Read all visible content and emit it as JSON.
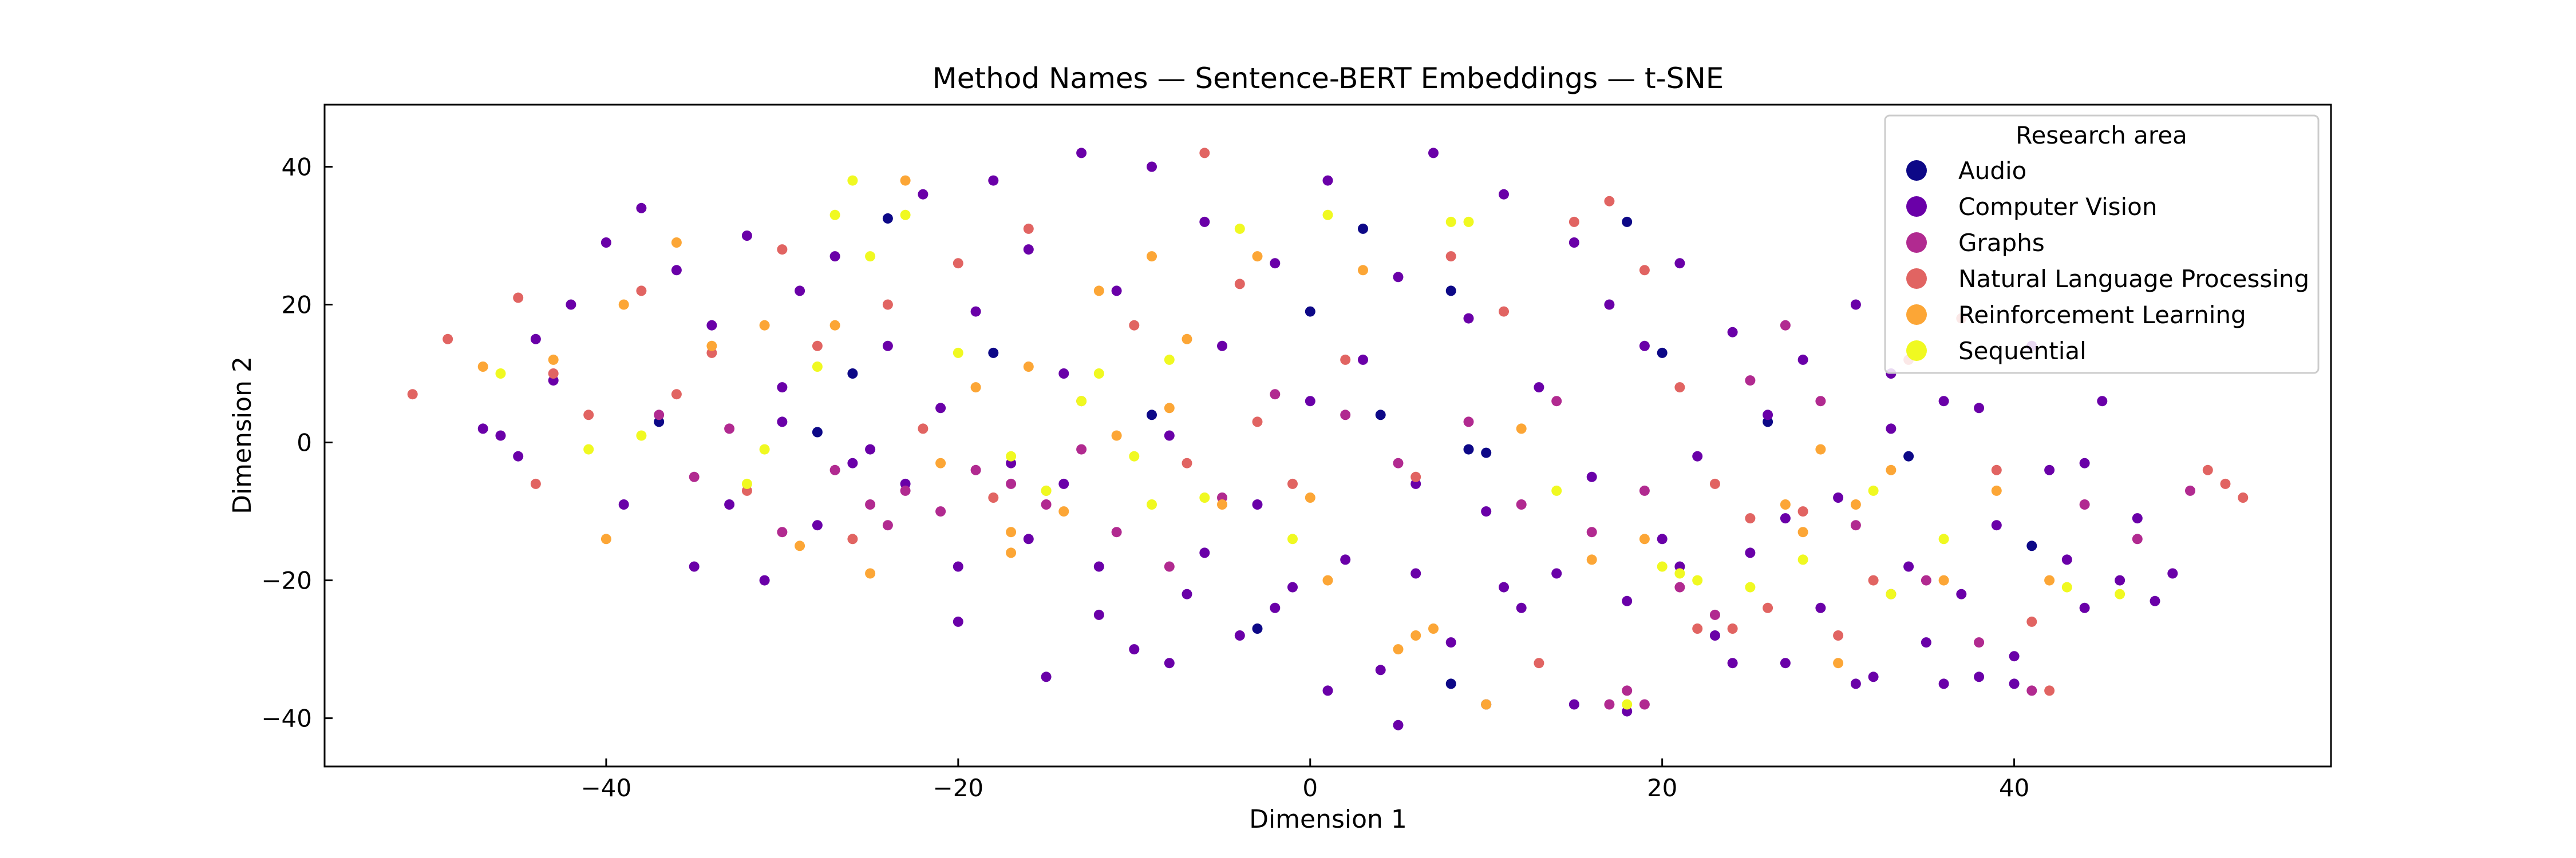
{
  "chart_data": {
    "type": "scatter",
    "title": "Method Names — Sentence-BERT Embeddings — t-SNE",
    "xlabel": "Dimension 1",
    "ylabel": "Dimension 2",
    "xlim": [
      -56,
      58
    ],
    "ylim": [
      -47,
      49
    ],
    "xticks": [
      -40,
      -20,
      0,
      20,
      40
    ],
    "yticks": [
      -40,
      -20,
      0,
      20,
      40
    ],
    "xtick_labels": [
      "−40",
      "−20",
      "0",
      "20",
      "40"
    ],
    "ytick_labels": [
      "−40",
      "−20",
      "0",
      "20",
      "40"
    ],
    "grid": false,
    "legend_title": "Research area",
    "legend_position": "top-right",
    "series": [
      {
        "name": "Audio",
        "color": "#0d0887",
        "points": [
          [
            -28,
            1.5
          ],
          [
            -24,
            32.5
          ],
          [
            -18,
            13
          ],
          [
            -9,
            4
          ],
          [
            0,
            19
          ],
          [
            3,
            31
          ],
          [
            4,
            4
          ],
          [
            8,
            22
          ],
          [
            9,
            -1
          ],
          [
            10,
            -1.5
          ],
          [
            -3,
            -27
          ],
          [
            8,
            -35
          ],
          [
            10,
            -38
          ],
          [
            18,
            32
          ],
          [
            20,
            13
          ],
          [
            26,
            3
          ],
          [
            34,
            -2
          ],
          [
            41,
            -15
          ],
          [
            -37,
            3
          ],
          [
            -26,
            10
          ]
        ]
      },
      {
        "name": "Computer Vision",
        "color": "#6a00a8",
        "points": [
          [
            -47,
            2
          ],
          [
            -46,
            1
          ],
          [
            -45,
            -2
          ],
          [
            -43,
            9
          ],
          [
            -42,
            20
          ],
          [
            -40,
            29
          ],
          [
            -38,
            34
          ],
          [
            -36,
            25
          ],
          [
            -34,
            17
          ],
          [
            -33,
            -9
          ],
          [
            -31,
            -20
          ],
          [
            -30,
            8
          ],
          [
            -29,
            22
          ],
          [
            -28,
            -12
          ],
          [
            -27,
            27
          ],
          [
            -25,
            -1
          ],
          [
            -24,
            14
          ],
          [
            -22,
            36
          ],
          [
            -21,
            5
          ],
          [
            -20,
            -26
          ],
          [
            -19,
            19
          ],
          [
            -18,
            38
          ],
          [
            -17,
            -3
          ],
          [
            -16,
            28
          ],
          [
            -15,
            -34
          ],
          [
            -14,
            10
          ],
          [
            -13,
            42
          ],
          [
            -12,
            -18
          ],
          [
            -11,
            22
          ],
          [
            -10,
            -30
          ],
          [
            -9,
            40
          ],
          [
            -8,
            1
          ],
          [
            -7,
            -22
          ],
          [
            -6,
            32
          ],
          [
            -5,
            14
          ],
          [
            -4,
            -28
          ],
          [
            -3,
            -9
          ],
          [
            -2,
            26
          ],
          [
            -1,
            -21
          ],
          [
            0,
            6
          ],
          [
            1,
            38
          ],
          [
            2,
            -17
          ],
          [
            3,
            12
          ],
          [
            4,
            -33
          ],
          [
            5,
            24
          ],
          [
            6,
            -6
          ],
          [
            7,
            42
          ],
          [
            8,
            -29
          ],
          [
            9,
            18
          ],
          [
            10,
            -10
          ],
          [
            11,
            36
          ],
          [
            12,
            -24
          ],
          [
            13,
            8
          ],
          [
            14,
            -19
          ],
          [
            15,
            29
          ],
          [
            16,
            -5
          ],
          [
            17,
            20
          ],
          [
            18,
            -39
          ],
          [
            19,
            14
          ],
          [
            20,
            -14
          ],
          [
            21,
            26
          ],
          [
            22,
            -2
          ],
          [
            23,
            -28
          ],
          [
            24,
            16
          ],
          [
            25,
            -16
          ],
          [
            26,
            4
          ],
          [
            27,
            -32
          ],
          [
            28,
            12
          ],
          [
            29,
            -24
          ],
          [
            30,
            -8
          ],
          [
            31,
            20
          ],
          [
            32,
            -34
          ],
          [
            33,
            2
          ],
          [
            34,
            -18
          ],
          [
            35,
            -29
          ],
          [
            36,
            6
          ],
          [
            37,
            -22
          ],
          [
            38,
            -34
          ],
          [
            39,
            -12
          ],
          [
            40,
            -31
          ],
          [
            41,
            14
          ],
          [
            42,
            -4
          ],
          [
            43,
            -17
          ],
          [
            44,
            -24
          ],
          [
            45,
            6
          ],
          [
            46,
            -20
          ],
          [
            47,
            -11
          ],
          [
            48,
            -23
          ],
          [
            49,
            -19
          ],
          [
            -44,
            15
          ],
          [
            -39,
            -9
          ],
          [
            -35,
            -18
          ],
          [
            -32,
            30
          ],
          [
            -23,
            -6
          ],
          [
            -16,
            -14
          ],
          [
            -12,
            -25
          ],
          [
            -6,
            -16
          ],
          [
            -2,
            -24
          ],
          [
            1,
            -36
          ],
          [
            5,
            -41
          ],
          [
            11,
            -21
          ],
          [
            15,
            -38
          ],
          [
            21,
            -18
          ],
          [
            27,
            -11
          ],
          [
            31,
            -35
          ],
          [
            36,
            -35
          ],
          [
            40,
            -35
          ],
          [
            44,
            -3
          ],
          [
            38,
            5
          ],
          [
            33,
            10
          ],
          [
            24,
            -32
          ],
          [
            18,
            -23
          ],
          [
            6,
            -19
          ],
          [
            -8,
            -32
          ],
          [
            -14,
            -6
          ],
          [
            -20,
            -18
          ],
          [
            -26,
            -3
          ],
          [
            -30,
            3
          ]
        ]
      },
      {
        "name": "Graphs",
        "color": "#b12a90",
        "points": [
          [
            -37,
            4
          ],
          [
            -35,
            -5
          ],
          [
            -33,
            2
          ],
          [
            -30,
            -13
          ],
          [
            -27,
            -4
          ],
          [
            -25,
            -9
          ],
          [
            -24,
            -12
          ],
          [
            -23,
            -7
          ],
          [
            -21,
            -10
          ],
          [
            -19,
            -4
          ],
          [
            -17,
            -6
          ],
          [
            -15,
            -9
          ],
          [
            -13,
            -1
          ],
          [
            -11,
            -13
          ],
          [
            -8,
            -18
          ],
          [
            -5,
            -8
          ],
          [
            -2,
            7
          ],
          [
            2,
            4
          ],
          [
            5,
            -3
          ],
          [
            9,
            3
          ],
          [
            12,
            -9
          ],
          [
            14,
            6
          ],
          [
            16,
            -13
          ],
          [
            19,
            -7
          ],
          [
            21,
            -21
          ],
          [
            23,
            -25
          ],
          [
            25,
            9
          ],
          [
            27,
            17
          ],
          [
            29,
            6
          ],
          [
            31,
            -12
          ],
          [
            33,
            -22
          ],
          [
            35,
            -20
          ],
          [
            38,
            -29
          ],
          [
            41,
            -36
          ],
          [
            44,
            -9
          ],
          [
            47,
            -14
          ],
          [
            50,
            -7
          ],
          [
            17,
            -38
          ],
          [
            18,
            -36
          ],
          [
            19,
            -38
          ]
        ]
      },
      {
        "name": "Natural Language Processing",
        "color": "#e16462",
        "points": [
          [
            -51,
            7
          ],
          [
            -49,
            15
          ],
          [
            -45,
            21
          ],
          [
            -44,
            -6
          ],
          [
            -43,
            10
          ],
          [
            -41,
            4
          ],
          [
            -38,
            22
          ],
          [
            -36,
            7
          ],
          [
            -34,
            13
          ],
          [
            -32,
            -7
          ],
          [
            -30,
            28
          ],
          [
            -28,
            14
          ],
          [
            -26,
            -14
          ],
          [
            -24,
            20
          ],
          [
            -22,
            2
          ],
          [
            -20,
            26
          ],
          [
            -18,
            -8
          ],
          [
            -16,
            31
          ],
          [
            -13,
            6
          ],
          [
            -10,
            17
          ],
          [
            -7,
            -3
          ],
          [
            -6,
            42
          ],
          [
            -4,
            23
          ],
          [
            -1,
            -6
          ],
          [
            2,
            12
          ],
          [
            6,
            -5
          ],
          [
            8,
            27
          ],
          [
            11,
            19
          ],
          [
            13,
            -32
          ],
          [
            15,
            32
          ],
          [
            17,
            35
          ],
          [
            19,
            25
          ],
          [
            21,
            8
          ],
          [
            23,
            -6
          ],
          [
            24,
            -27
          ],
          [
            26,
            -24
          ],
          [
            28,
            -10
          ],
          [
            30,
            -28
          ],
          [
            32,
            -20
          ],
          [
            34,
            12
          ],
          [
            37,
            18
          ],
          [
            39,
            -4
          ],
          [
            41,
            -26
          ],
          [
            42,
            -36
          ],
          [
            52,
            -6
          ],
          [
            53,
            -8
          ],
          [
            51,
            -4
          ],
          [
            -3,
            3
          ],
          [
            22,
            -27
          ],
          [
            25,
            -11
          ]
        ]
      },
      {
        "name": "Reinforcement Learning",
        "color": "#fca636",
        "points": [
          [
            -47,
            11
          ],
          [
            -43,
            12
          ],
          [
            -40,
            -14
          ],
          [
            -39,
            20
          ],
          [
            -36,
            29
          ],
          [
            -34,
            14
          ],
          [
            -31,
            17
          ],
          [
            -29,
            -15
          ],
          [
            -27,
            17
          ],
          [
            -25,
            -19
          ],
          [
            -23,
            38
          ],
          [
            -21,
            -3
          ],
          [
            -19,
            8
          ],
          [
            -17,
            -16
          ],
          [
            -15,
            -7
          ],
          [
            -14,
            -10
          ],
          [
            -12,
            22
          ],
          [
            -11,
            1
          ],
          [
            -9,
            27
          ],
          [
            -8,
            5
          ],
          [
            -7,
            15
          ],
          [
            -5,
            -9
          ],
          [
            -3,
            27
          ],
          [
            0,
            -8
          ],
          [
            1,
            -20
          ],
          [
            3,
            25
          ],
          [
            5,
            -30
          ],
          [
            6,
            -28
          ],
          [
            7,
            -27
          ],
          [
            10,
            -38
          ],
          [
            12,
            2
          ],
          [
            16,
            -17
          ],
          [
            19,
            -14
          ],
          [
            27,
            -9
          ],
          [
            28,
            -13
          ],
          [
            29,
            -1
          ],
          [
            30,
            -32
          ],
          [
            31,
            -9
          ],
          [
            33,
            -4
          ],
          [
            36,
            -20
          ],
          [
            39,
            -7
          ],
          [
            42,
            -20
          ],
          [
            -17,
            -13
          ],
          [
            -16,
            11
          ]
        ]
      },
      {
        "name": "Sequential",
        "color": "#f0f921",
        "points": [
          [
            -46,
            10
          ],
          [
            -41,
            -1
          ],
          [
            -38,
            1
          ],
          [
            -31,
            -1
          ],
          [
            -27,
            33
          ],
          [
            -26,
            38
          ],
          [
            -25,
            27
          ],
          [
            -23,
            33
          ],
          [
            -20,
            13
          ],
          [
            -17,
            -2
          ],
          [
            -15,
            -7
          ],
          [
            -13,
            6
          ],
          [
            -10,
            -2
          ],
          [
            -9,
            -9
          ],
          [
            -8,
            12
          ],
          [
            -6,
            -8
          ],
          [
            -4,
            31
          ],
          [
            -1,
            -14
          ],
          [
            1,
            33
          ],
          [
            8,
            32
          ],
          [
            9,
            32
          ],
          [
            14,
            -7
          ],
          [
            18,
            -38
          ],
          [
            20,
            -18
          ],
          [
            21,
            -19
          ],
          [
            22,
            -20
          ],
          [
            25,
            -21
          ],
          [
            28,
            -17
          ],
          [
            32,
            -7
          ],
          [
            33,
            -22
          ],
          [
            36,
            -14
          ],
          [
            43,
            -21
          ],
          [
            46,
            -22
          ],
          [
            -32,
            -6
          ],
          [
            -28,
            11
          ],
          [
            -12,
            10
          ]
        ]
      }
    ]
  }
}
